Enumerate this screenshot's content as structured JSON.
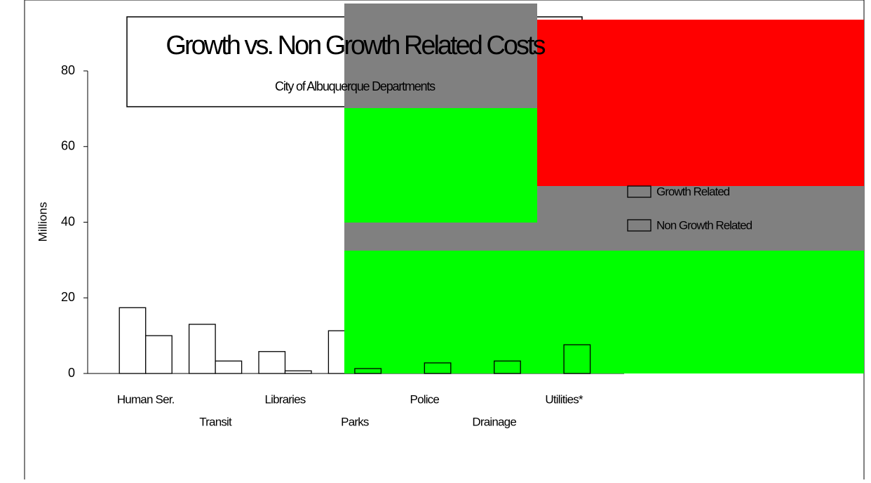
{
  "chart_data": {
    "type": "bar",
    "title": "Growth vs. Non Growth Related Costs",
    "subtitle": "City of Albuquerque Departments",
    "y_label": "Millions",
    "categories": [
      "Human Ser.",
      "Transit",
      "Libraries",
      "Parks",
      "Police",
      "Drainage",
      "Utilities*"
    ],
    "series": [
      {
        "name": "Growth Related",
        "color": "#ffffff",
        "values": [
          17.4,
          13,
          5.8,
          11.3,
          null,
          null,
          null
        ]
      },
      {
        "name": "Non Growth Related",
        "color": "#ffffff",
        "values": [
          10,
          3.3,
          0.7,
          1.3,
          2.8,
          3.3,
          7.6
        ]
      }
    ],
    "ylim": [
      0,
      80
    ],
    "yticks": [
      0,
      20,
      40,
      60,
      80
    ],
    "grid": false,
    "legend": "right"
  }
}
